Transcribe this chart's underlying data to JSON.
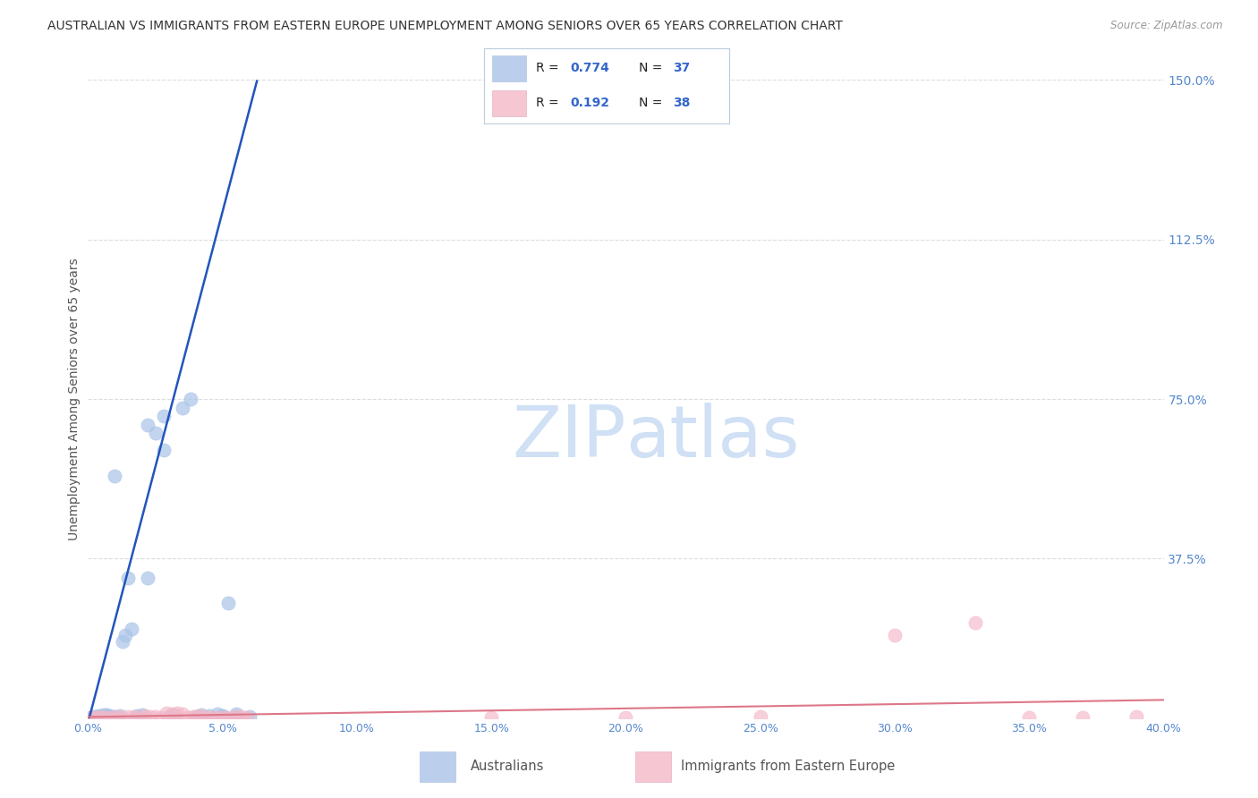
{
  "title": "AUSTRALIAN VS IMMIGRANTS FROM EASTERN EUROPE UNEMPLOYMENT AMONG SENIORS OVER 65 YEARS CORRELATION CHART",
  "source": "Source: ZipAtlas.com",
  "ylabel": "Unemployment Among Seniors over 65 years",
  "blue_R": "0.774",
  "blue_N": "37",
  "pink_R": "0.192",
  "pink_N": "38",
  "blue_label": "Australians",
  "pink_label": "Immigrants from Eastern Europe",
  "blue_scatter_color": "#aac4e8",
  "pink_scatter_color": "#f4b8c8",
  "blue_line_color": "#2255bb",
  "pink_line_color": "#dd7788",
  "legend_text_color": "#3366cc",
  "title_color": "#333333",
  "source_color": "#999999",
  "axis_tick_color": "#5588cc",
  "ylabel_color": "#555555",
  "watermark_color": "#d0e0f5",
  "background_color": "#ffffff",
  "grid_color": "#dddddd",
  "xlim": [
    0.0,
    0.4
  ],
  "ylim": [
    0.0,
    1.5
  ],
  "right_yticks": [
    0.375,
    0.75,
    1.125,
    1.5
  ],
  "right_yticklabels": [
    "37.5%",
    "75.0%",
    "112.5%",
    "150.0%"
  ],
  "xtick_vals": [
    0.0,
    0.05,
    0.1,
    0.15,
    0.2,
    0.25,
    0.3,
    0.35,
    0.4
  ],
  "xtick_labels": [
    "0.0%",
    "5.0%",
    "10.0%",
    "15.0%",
    "20.0%",
    "25.0%",
    "30.0%",
    "35.0%",
    "40.0%"
  ],
  "blue_x": [
    0.001,
    0.002,
    0.003,
    0.004,
    0.005,
    0.006,
    0.007,
    0.008,
    0.009,
    0.01,
    0.012,
    0.013,
    0.014,
    0.016,
    0.018,
    0.02,
    0.022,
    0.025,
    0.028,
    0.03,
    0.032,
    0.035,
    0.038,
    0.04,
    0.042,
    0.045,
    0.048,
    0.05,
    0.052,
    0.055,
    0.022,
    0.028,
    0.05,
    0.055,
    0.06,
    0.01,
    0.015
  ],
  "blue_y": [
    0.002,
    0.003,
    0.004,
    0.005,
    0.006,
    0.007,
    0.008,
    0.005,
    0.004,
    0.003,
    0.005,
    0.18,
    0.195,
    0.21,
    0.006,
    0.007,
    0.69,
    0.67,
    0.71,
    0.004,
    0.007,
    0.73,
    0.75,
    0.004,
    0.009,
    0.005,
    0.01,
    0.006,
    0.27,
    0.01,
    0.33,
    0.63,
    0.004,
    0.004,
    0.004,
    0.57,
    0.33
  ],
  "pink_x": [
    0.001,
    0.003,
    0.005,
    0.007,
    0.009,
    0.011,
    0.013,
    0.015,
    0.017,
    0.019,
    0.021,
    0.023,
    0.025,
    0.027,
    0.029,
    0.031,
    0.033,
    0.035,
    0.037,
    0.039,
    0.041,
    0.043,
    0.045,
    0.047,
    0.049,
    0.051,
    0.053,
    0.055,
    0.057,
    0.059,
    0.15,
    0.2,
    0.25,
    0.3,
    0.33,
    0.35,
    0.37,
    0.39
  ],
  "pink_y": [
    0.002,
    0.001,
    0.003,
    0.002,
    0.001,
    0.003,
    0.002,
    0.004,
    0.003,
    0.002,
    0.005,
    0.004,
    0.003,
    0.002,
    0.012,
    0.01,
    0.013,
    0.011,
    0.001,
    0.003,
    0.005,
    0.004,
    0.002,
    0.001,
    0.002,
    0.002,
    0.001,
    0.003,
    0.003,
    0.002,
    0.002,
    0.001,
    0.003,
    0.195,
    0.225,
    0.002,
    0.001,
    0.003
  ]
}
